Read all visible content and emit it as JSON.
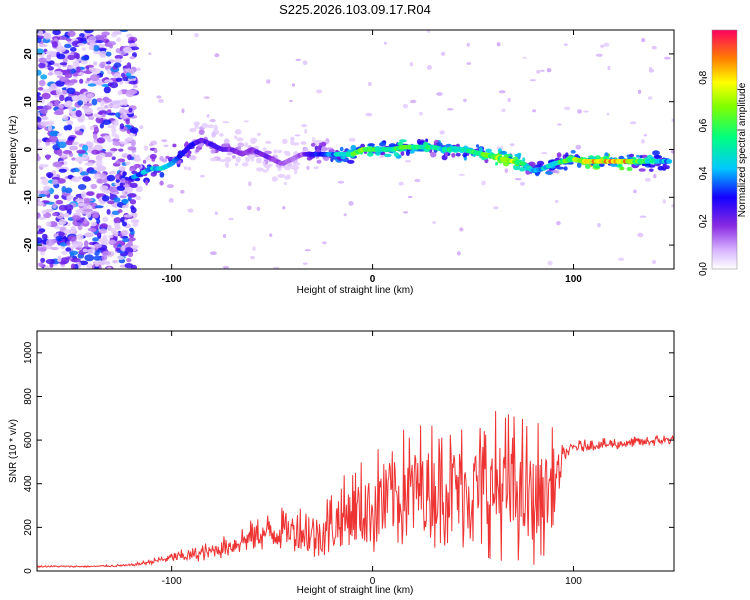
{
  "title": "S225.2026.103.09.17.R04",
  "chart_data": [
    {
      "type": "heatmap",
      "xlabel": "Height of straight line (km)",
      "ylabel": "Frequency (Hz)",
      "xlim": [
        -167,
        150
      ],
      "ylim": [
        -25,
        25
      ],
      "xticks": [
        -100,
        0,
        100
      ],
      "yticks": [
        -20,
        -10,
        0,
        10,
        20
      ],
      "colorbar": {
        "label": "Normalized spectral amplitude",
        "range": [
          0,
          1
        ],
        "ticks": [
          "0.0",
          "0.2",
          "0.4",
          "0.6",
          "0.8"
        ],
        "tick_values": [
          0,
          0.2,
          0.4,
          0.6,
          0.8
        ]
      },
      "ridge": {
        "x": [
          -120,
          -115,
          -110,
          -105,
          -100,
          -95,
          -90,
          -85,
          -80,
          -75,
          -70,
          -65,
          -60,
          -55,
          -50,
          -45,
          -40,
          -35,
          -30,
          -25,
          -20,
          -15,
          -10,
          -5,
          0,
          5,
          10,
          15,
          20,
          25,
          30,
          35,
          40,
          45,
          50,
          55,
          60,
          65,
          70,
          75,
          80,
          85,
          90,
          95,
          100,
          105,
          110,
          115,
          120,
          125,
          130,
          135,
          140,
          145,
          148
        ],
        "y": [
          -6,
          -5,
          -4,
          -4,
          -3,
          -1,
          1,
          2,
          1,
          0,
          0,
          -1,
          0,
          -1,
          -2,
          -3,
          -2,
          -1,
          -1,
          -1,
          -1,
          -1,
          -1,
          0,
          0,
          0,
          0,
          0.5,
          0.5,
          0.5,
          0.5,
          0,
          0,
          0,
          -0.5,
          -1,
          -1.5,
          -2,
          -2.5,
          -3,
          -4.5,
          -4,
          -3,
          -2.5,
          -2,
          -2.5,
          -2.5,
          -2.5,
          -2.5,
          -2.5,
          -2.5,
          -2.5,
          -2.5,
          -2.5,
          -2.5
        ],
        "amplitude": [
          0.35,
          0.4,
          0.45,
          0.45,
          0.4,
          0.35,
          0.3,
          0.25,
          0.25,
          0.25,
          0.2,
          0.2,
          0.2,
          0.2,
          0.2,
          0.15,
          0.15,
          0.15,
          0.3,
          0.35,
          0.4,
          0.5,
          0.6,
          0.65,
          0.6,
          0.55,
          0.55,
          0.6,
          0.6,
          0.6,
          0.55,
          0.5,
          0.55,
          0.5,
          0.55,
          0.6,
          0.7,
          0.7,
          0.75,
          0.6,
          0.4,
          0.45,
          0.5,
          0.6,
          0.7,
          0.8,
          0.9,
          0.85,
          0.85,
          0.9,
          0.7,
          0.6,
          0.5,
          0.45,
          0.4
        ]
      }
    },
    {
      "type": "line",
      "xlabel": "Height of straight line (km)",
      "ylabel": "SNR (10 * v/v)",
      "xlim": [
        -167,
        150
      ],
      "ylim": [
        0,
        1100
      ],
      "xticks": [
        -100,
        0,
        100
      ],
      "yticks": [
        0,
        200,
        400,
        600,
        800,
        1000
      ],
      "color": "#ee3333",
      "series": [
        {
          "x": [
            -167,
            -140,
            -120,
            -110,
            -100,
            -90,
            -80,
            -70,
            -60,
            -50,
            -40,
            -30,
            -20,
            -10,
            0,
            10,
            20,
            30,
            40,
            50,
            60,
            70,
            80,
            85,
            90,
            95,
            100,
            110,
            120,
            130,
            140,
            150
          ],
          "baseline": [
            20,
            20,
            25,
            40,
            55,
            65,
            80,
            110,
            140,
            160,
            170,
            130,
            170,
            210,
            230,
            280,
            300,
            320,
            320,
            300,
            300,
            280,
            260,
            280,
            320,
            520,
            560,
            570,
            575,
            580,
            590,
            595
          ],
          "spread": [
            8,
            8,
            12,
            25,
            50,
            70,
            90,
            120,
            150,
            180,
            220,
            280,
            330,
            420,
            500,
            560,
            580,
            620,
            640,
            680,
            700,
            700,
            680,
            640,
            520,
            80,
            60,
            55,
            55,
            55,
            55,
            55
          ]
        }
      ]
    }
  ]
}
